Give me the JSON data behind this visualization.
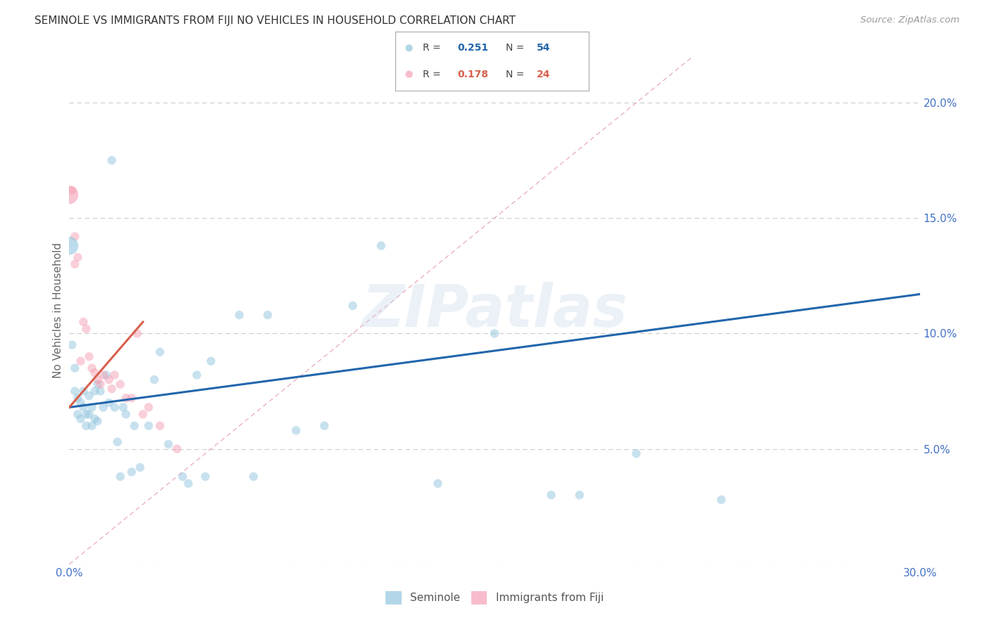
{
  "title": "SEMINOLE VS IMMIGRANTS FROM FIJI NO VEHICLES IN HOUSEHOLD CORRELATION CHART",
  "source": "Source: ZipAtlas.com",
  "ylabel": "No Vehicles in Household",
  "xlim": [
    0.0,
    0.3
  ],
  "ylim": [
    0.0,
    0.22
  ],
  "xticks": [
    0.0,
    0.05,
    0.1,
    0.15,
    0.2,
    0.25,
    0.3
  ],
  "yticks": [
    0.0,
    0.05,
    0.1,
    0.15,
    0.2
  ],
  "blue_color": "#92c5de",
  "pink_color": "#f4a0b5",
  "blue_line_color": "#2166ac",
  "pink_line_color": "#d6604d",
  "ref_line_color": "#f4a0b5",
  "watermark": "ZIPatlas",
  "seminole_x": [
    0.001,
    0.002,
    0.002,
    0.003,
    0.003,
    0.004,
    0.004,
    0.005,
    0.005,
    0.006,
    0.006,
    0.007,
    0.007,
    0.008,
    0.008,
    0.009,
    0.009,
    0.01,
    0.01,
    0.011,
    0.012,
    0.013,
    0.014,
    0.015,
    0.016,
    0.017,
    0.018,
    0.019,
    0.02,
    0.022,
    0.023,
    0.025,
    0.028,
    0.03,
    0.032,
    0.035,
    0.04,
    0.042,
    0.045,
    0.048,
    0.05,
    0.06,
    0.065,
    0.07,
    0.08,
    0.09,
    0.1,
    0.11,
    0.13,
    0.15,
    0.17,
    0.18,
    0.2,
    0.23
  ],
  "seminole_y": [
    0.095,
    0.085,
    0.075,
    0.072,
    0.065,
    0.07,
    0.063,
    0.075,
    0.068,
    0.065,
    0.06,
    0.073,
    0.065,
    0.06,
    0.068,
    0.075,
    0.063,
    0.078,
    0.062,
    0.075,
    0.068,
    0.082,
    0.07,
    0.175,
    0.068,
    0.053,
    0.038,
    0.068,
    0.065,
    0.04,
    0.06,
    0.042,
    0.06,
    0.08,
    0.092,
    0.052,
    0.038,
    0.035,
    0.082,
    0.038,
    0.088,
    0.108,
    0.038,
    0.108,
    0.058,
    0.06,
    0.112,
    0.138,
    0.035,
    0.1,
    0.03,
    0.03,
    0.048,
    0.028
  ],
  "fiji_x": [
    0.001,
    0.002,
    0.002,
    0.003,
    0.004,
    0.005,
    0.006,
    0.007,
    0.008,
    0.009,
    0.01,
    0.011,
    0.012,
    0.014,
    0.015,
    0.016,
    0.018,
    0.02,
    0.022,
    0.024,
    0.026,
    0.028,
    0.032,
    0.038
  ],
  "fiji_y": [
    0.162,
    0.142,
    0.13,
    0.133,
    0.088,
    0.105,
    0.102,
    0.09,
    0.085,
    0.083,
    0.08,
    0.078,
    0.082,
    0.08,
    0.076,
    0.082,
    0.078,
    0.072,
    0.072,
    0.1,
    0.065,
    0.068,
    0.06,
    0.05
  ],
  "fiji_large_x": [
    0.0
  ],
  "fiji_large_y": [
    0.16
  ],
  "blue_large_x": [
    0.0
  ],
  "blue_large_y": [
    0.138
  ],
  "blue_line_x": [
    0.0,
    0.3
  ],
  "blue_line_y": [
    0.068,
    0.117
  ],
  "pink_line_x": [
    0.0,
    0.026
  ],
  "pink_line_y": [
    0.068,
    0.105
  ],
  "marker_size": 80,
  "large_marker_size": 350,
  "alpha": 0.5,
  "figsize": [
    14.06,
    8.92
  ]
}
